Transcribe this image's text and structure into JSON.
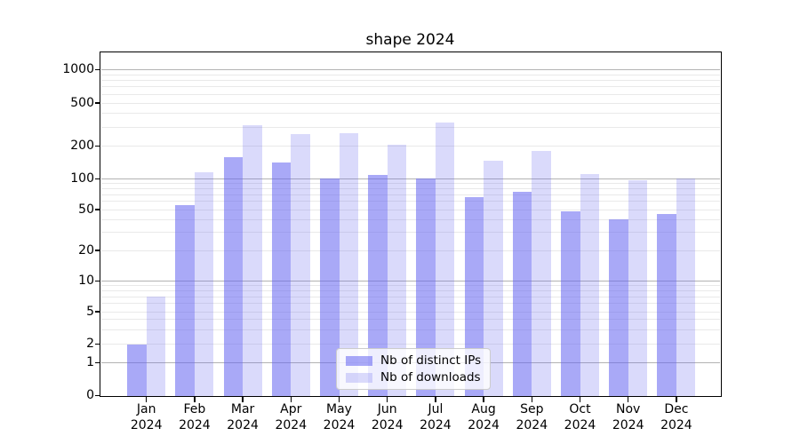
{
  "figure": {
    "title": "shape 2024"
  },
  "chart_data": {
    "type": "bar",
    "title": "shape 2024",
    "categories": [
      "Jan 2024",
      "Feb 2024",
      "Mar 2024",
      "Apr 2024",
      "May 2024",
      "Jun 2024",
      "Jul 2024",
      "Aug 2024",
      "Sep 2024",
      "Oct 2024",
      "Nov 2024",
      "Dec 2024"
    ],
    "series": [
      {
        "name": "Nb of distinct IPs",
        "values": [
          2,
          55,
          160,
          142,
          102,
          110,
          101,
          66,
          75,
          48,
          40,
          45
        ],
        "color": "rgba(99,99,240,0.55)"
      },
      {
        "name": "Nb of downloads",
        "values": [
          7,
          115,
          310,
          260,
          263,
          207,
          330,
          148,
          180,
          112,
          97,
          102
        ],
        "color": "rgba(99,99,240,0.24)"
      }
    ],
    "xlabel": "",
    "ylabel": "",
    "yscale": "symlog",
    "yticks": [
      0,
      1,
      2,
      5,
      10,
      20,
      50,
      100,
      200,
      500,
      1000
    ],
    "ylim": [
      0,
      1440
    ],
    "grid": "horizontal, major and minor",
    "legend_position": "lower center"
  },
  "colors": {
    "background": "#ffffff",
    "bar_distinct_ips": "rgba(99,99,240,0.55)",
    "bar_downloads": "rgba(99,99,240,0.24)",
    "major_grid": "#b3b3b3",
    "minor_grid": "#e9e9e9",
    "axis_frame": "#000000",
    "text": "#000000",
    "legend_border": "#cccccc"
  }
}
